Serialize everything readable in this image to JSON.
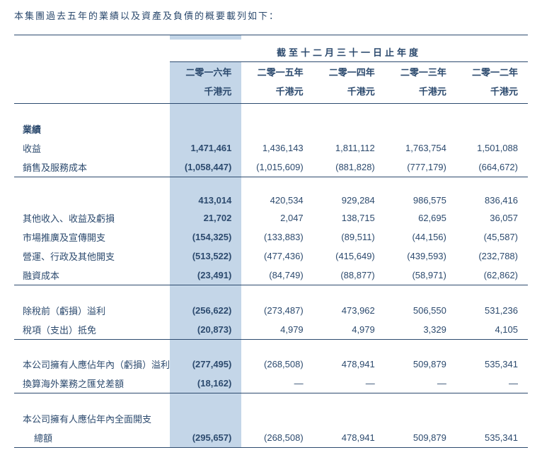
{
  "intro": "本集團過去五年的業績以及資產及負債的概要載列如下：",
  "spanning_header": "截至十二月三十一日止年度",
  "years": {
    "y2016": "二零一六年",
    "y2015": "二零一五年",
    "y2014": "二零一四年",
    "y2013": "二零一三年",
    "y2012": "二零一二年"
  },
  "unit": "千港元",
  "section_label": "業績",
  "rows": {
    "revenue": {
      "label": "收益",
      "v2016": "1,471,461",
      "v2015": "1,436,143",
      "v2014": "1,811,112",
      "v2013": "1,763,754",
      "v2012": "1,501,088"
    },
    "cogs": {
      "label": "銷售及服務成本",
      "v2016": "(1,058,447)",
      "v2015": "(1,015,609)",
      "v2014": "(881,828)",
      "v2013": "(777,179)",
      "v2012": "(664,672)"
    },
    "gross": {
      "label": "",
      "v2016": "413,014",
      "v2015": "420,534",
      "v2014": "929,284",
      "v2013": "986,575",
      "v2012": "836,416"
    },
    "other_income": {
      "label": "其他收入、收益及虧損",
      "v2016": "21,702",
      "v2015": "2,047",
      "v2014": "138,715",
      "v2013": "62,695",
      "v2012": "36,057"
    },
    "marketing": {
      "label": "市場推廣及宣傳開支",
      "v2016": "(154,325)",
      "v2015": "(133,883)",
      "v2014": "(89,511)",
      "v2013": "(44,156)",
      "v2012": "(45,587)"
    },
    "admin": {
      "label": "營運、行政及其他開支",
      "v2016": "(513,522)",
      "v2015": "(477,436)",
      "v2014": "(415,649)",
      "v2013": "(439,593)",
      "v2012": "(232,788)"
    },
    "finance": {
      "label": "融資成本",
      "v2016": "(23,491)",
      "v2015": "(84,749)",
      "v2014": "(88,877)",
      "v2013": "(58,971)",
      "v2012": "(62,862)"
    },
    "pbt": {
      "label": "除稅前（虧損）溢利",
      "v2016": "(256,622)",
      "v2015": "(273,487)",
      "v2014": "473,962",
      "v2013": "506,550",
      "v2012": "531,236"
    },
    "tax": {
      "label": "稅項（支出）抵免",
      "v2016": "(20,873)",
      "v2015": "4,979",
      "v2014": "4,979",
      "v2013": "3,329",
      "v2012": "4,105"
    },
    "attr": {
      "label": "本公司擁有人應佔年內（虧損）溢利",
      "v2016": "(277,495)",
      "v2015": "(268,508)",
      "v2014": "478,941",
      "v2013": "509,879",
      "v2012": "535,341"
    },
    "fx": {
      "label": "換算海外業務之匯兌差額",
      "v2016": "(18,162)",
      "v2015": "—",
      "v2014": "—",
      "v2013": "—",
      "v2012": "—"
    },
    "total_comp_label1": "本公司擁有人應佔年內全面開支",
    "total_comp": {
      "label": "總額",
      "v2016": "(295,657)",
      "v2015": "(268,508)",
      "v2014": "478,941",
      "v2013": "509,879",
      "v2012": "535,341"
    }
  },
  "colors": {
    "hilite_bg": "#c4d6e8",
    "text": "#2c4a6e",
    "border": "#2c4a6e"
  }
}
